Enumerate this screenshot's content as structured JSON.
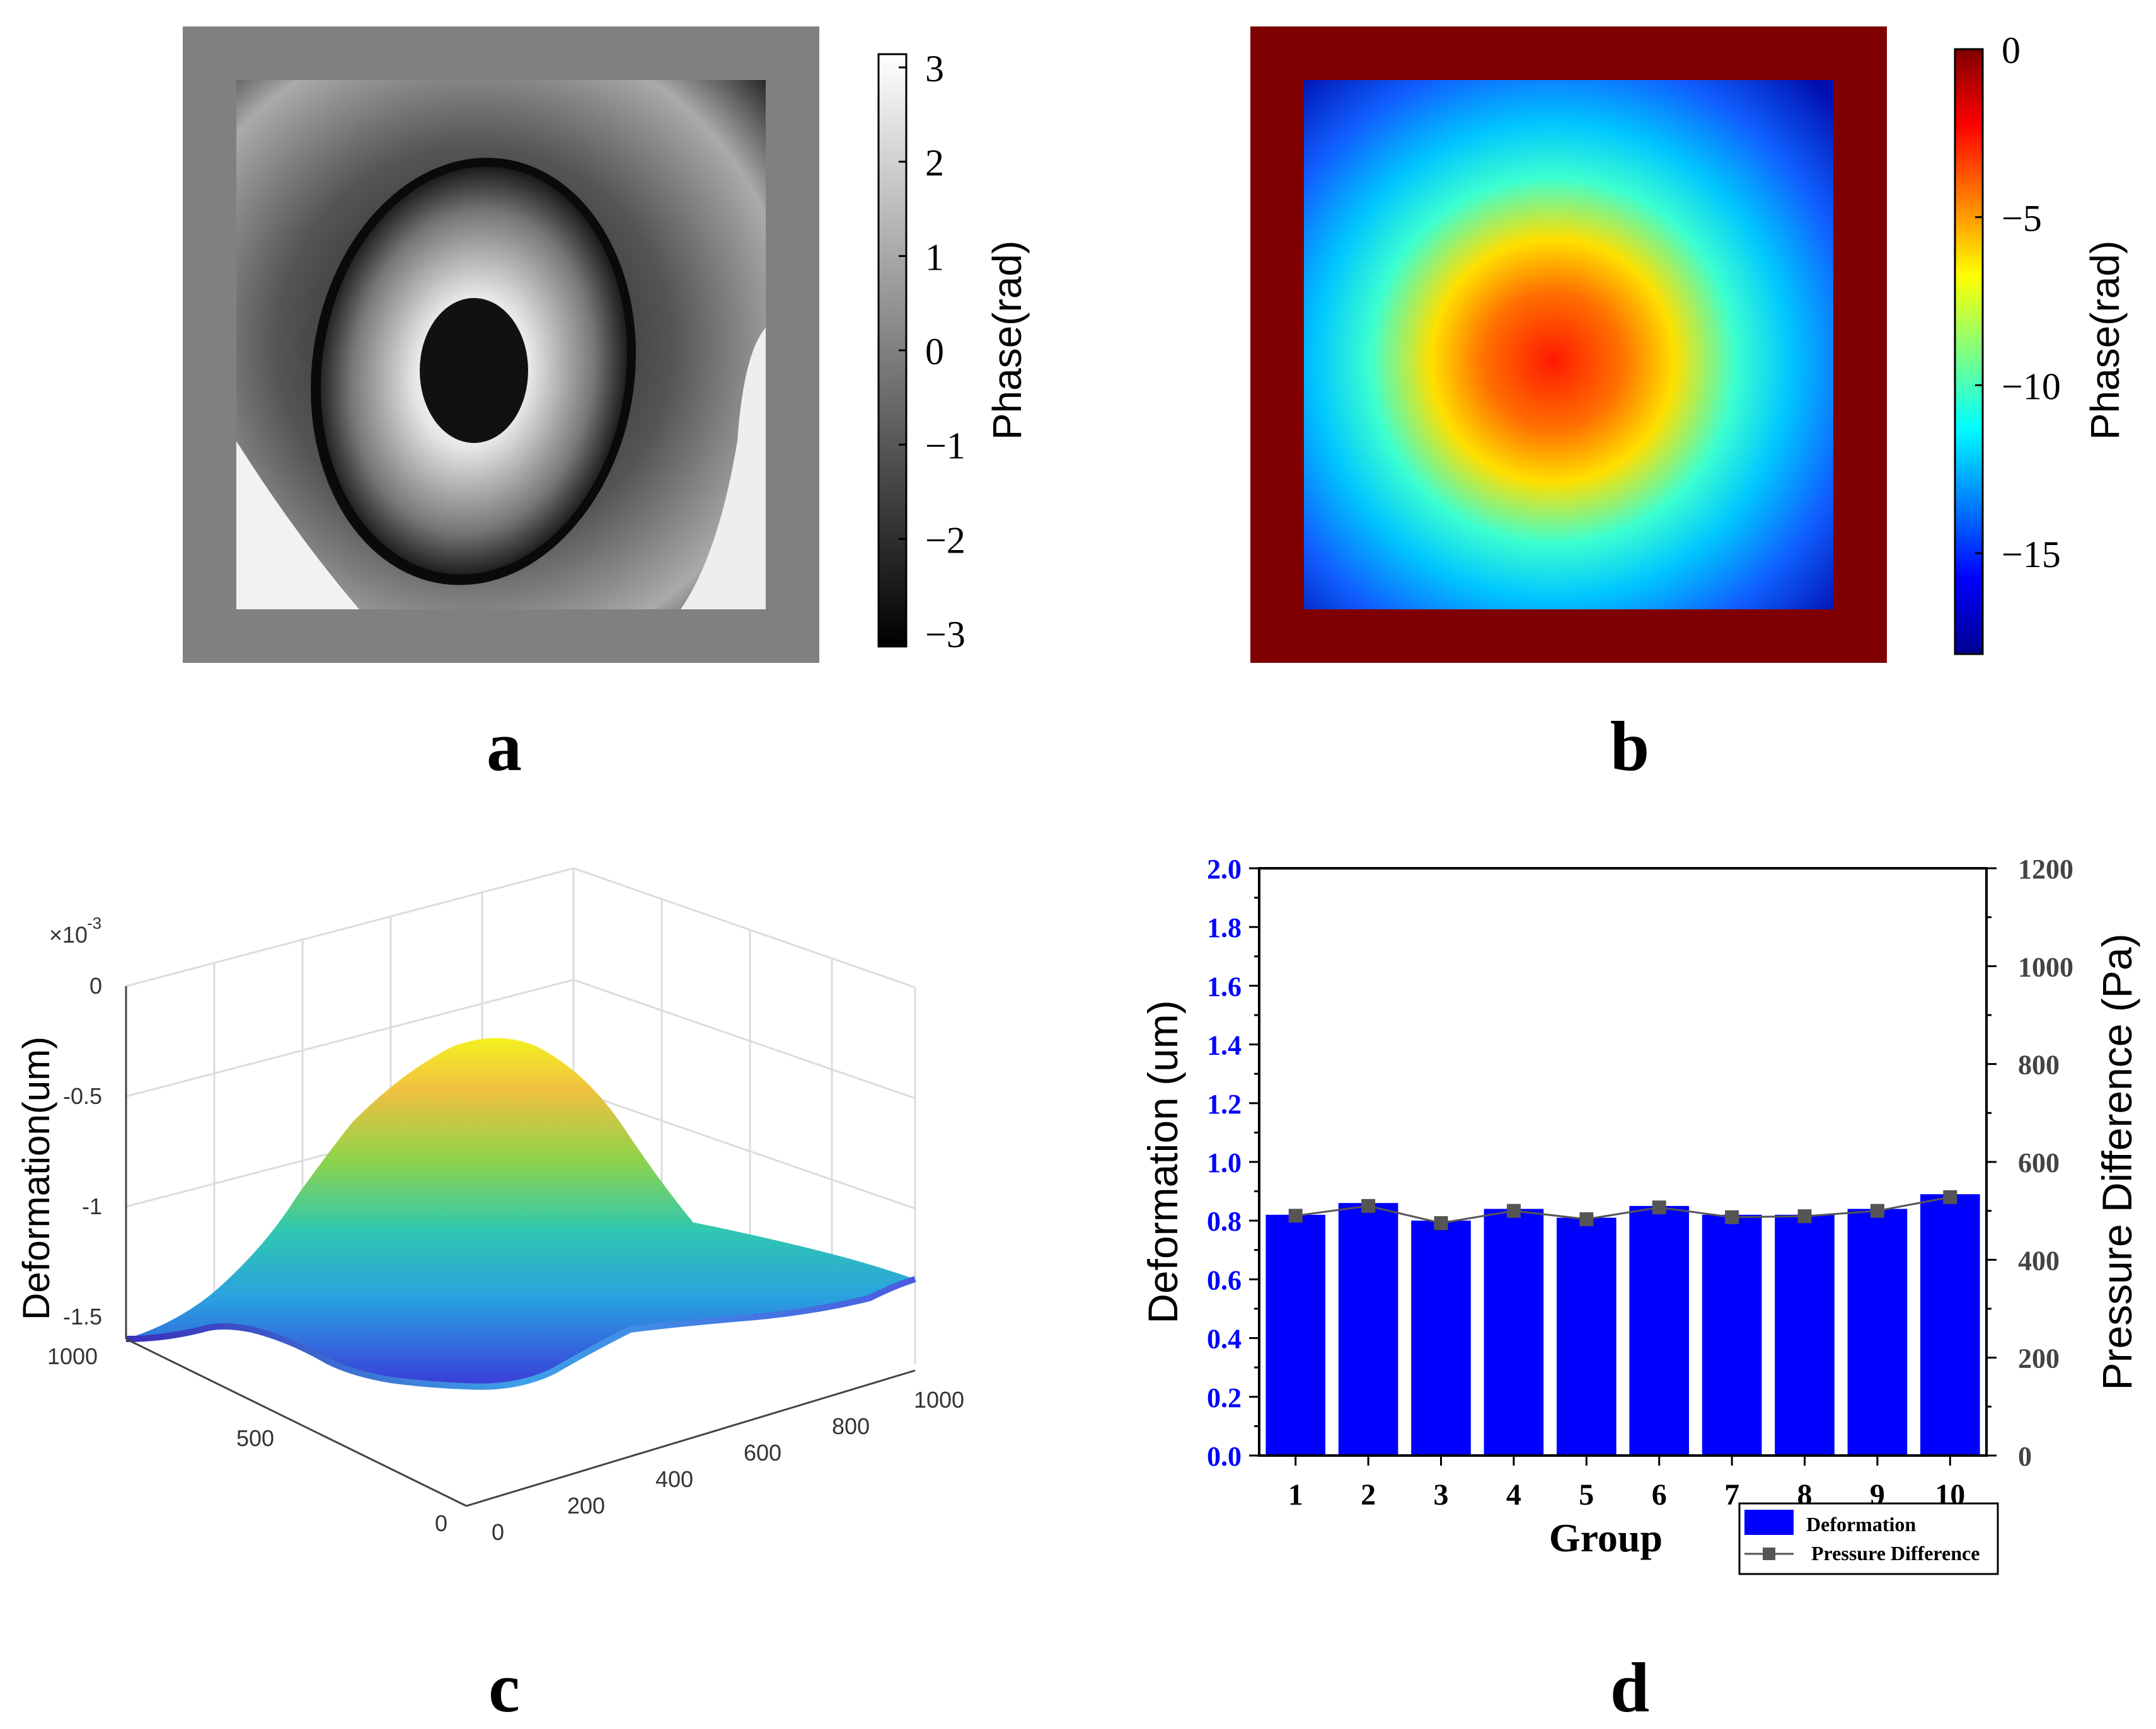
{
  "panels": {
    "a": {
      "label": "a",
      "colorbar": {
        "ticks": [
          "3",
          "2",
          "1",
          "0",
          "−1",
          "−2",
          "−3"
        ],
        "tick_values": [
          3,
          2,
          1,
          0,
          -1,
          -2,
          -3
        ],
        "range": [
          -3.14,
          3.14
        ],
        "label": "Phase(rad)"
      }
    },
    "b": {
      "label": "b",
      "colorbar": {
        "ticks": [
          "0",
          "−5",
          "−10",
          "−15"
        ],
        "tick_values": [
          0,
          -5,
          -10,
          -15
        ],
        "range": [
          -18,
          0
        ],
        "label": "Phase(rad)"
      }
    },
    "c": {
      "label": "c",
      "zlabel": "Deformation(um)",
      "exponent_base": "×10",
      "exponent_power": "-3",
      "z_ticks": [
        "0",
        "-0.5",
        "-1",
        "-1.5"
      ],
      "x_ticks": [
        "0",
        "200",
        "400",
        "600",
        "800",
        "1000"
      ],
      "y_ticks": [
        "0",
        "500",
        "1000"
      ]
    },
    "d": {
      "label": "d"
    }
  },
  "chart_data": [
    {
      "panel": "a",
      "type": "heatmap",
      "title": "",
      "colormap": "gray",
      "zlabel": "Phase(rad)",
      "zlim": [
        -3.14,
        3.14
      ],
      "description_values": "wrapped phase map with concentric elliptical fringes"
    },
    {
      "panel": "b",
      "type": "heatmap",
      "title": "",
      "colormap": "jet",
      "zlabel": "Phase(rad)",
      "zlim": [
        -18,
        0
      ],
      "description_values": "unwrapped phase map with elliptical maximum near center"
    },
    {
      "panel": "c",
      "type": "surface",
      "xlim": [
        0,
        1000
      ],
      "ylim": [
        0,
        1000
      ],
      "zlim": [
        -1.6,
        0
      ],
      "zlabel": "Deformation(um)",
      "z_scale": "x10^-3",
      "peak_z": -0.25,
      "base_z": -1.5
    },
    {
      "panel": "d",
      "type": "bar",
      "categories": [
        "1",
        "2",
        "3",
        "4",
        "5",
        "6",
        "7",
        "8",
        "9",
        "10"
      ],
      "xlabel": "Group",
      "ylabel": "Deformation (um)",
      "y2label": "Pressure Difference (Pa)",
      "ylim": [
        0,
        2.0
      ],
      "y2lim": [
        0,
        1200
      ],
      "y_ticks": [
        "0.0",
        "0.2",
        "0.4",
        "0.6",
        "0.8",
        "1.0",
        "1.2",
        "1.4",
        "1.6",
        "1.8",
        "2.0"
      ],
      "y2_ticks": [
        "0",
        "200",
        "400",
        "600",
        "800",
        "1000",
        "1200"
      ],
      "series": [
        {
          "name": "Deformation",
          "kind": "bar",
          "axis": "left",
          "values": [
            0.82,
            0.86,
            0.8,
            0.84,
            0.81,
            0.85,
            0.82,
            0.82,
            0.84,
            0.89
          ]
        },
        {
          "name": "Pressure Difference",
          "kind": "line",
          "axis": "right",
          "values": [
            490,
            510,
            475,
            500,
            483,
            507,
            487,
            489,
            500,
            528
          ]
        }
      ],
      "colors": {
        "bar": "#0000ff",
        "line": "#555555",
        "axis_left": "#0000ff"
      }
    }
  ]
}
